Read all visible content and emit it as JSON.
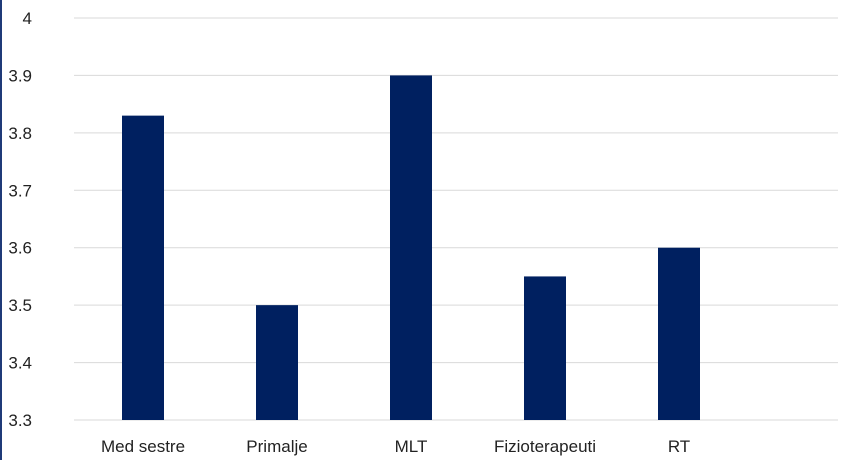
{
  "chart_data": {
    "type": "bar",
    "categories": [
      "Med sestre",
      "Primalje",
      "MLT",
      "Fizioterapeuti",
      "RT"
    ],
    "values": [
      3.83,
      3.5,
      3.9,
      3.55,
      3.6
    ],
    "ylim": [
      3.3,
      4.0
    ],
    "yticks": [
      "3.3",
      "3.4",
      "3.5",
      "3.6",
      "3.7",
      "3.8",
      "3.9",
      "4"
    ],
    "grid": true,
    "legend": "none",
    "bar_color": "#002060",
    "grid_color": "#d9d9d9"
  }
}
